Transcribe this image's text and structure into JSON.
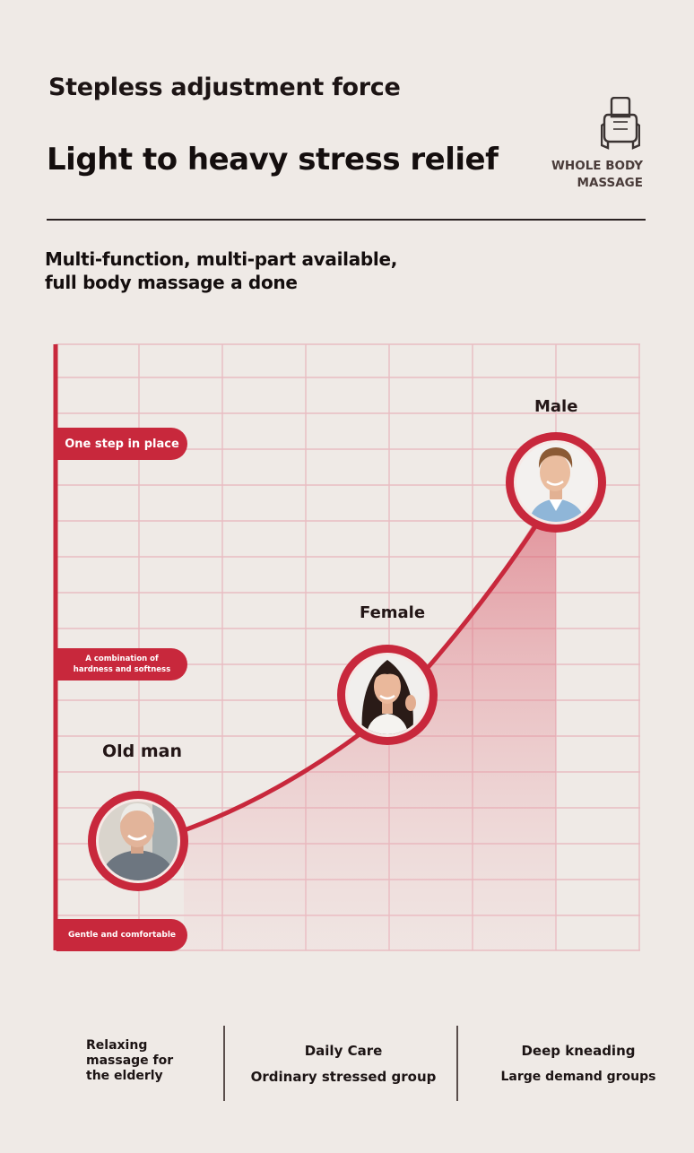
{
  "header": {
    "line1": "Stepless adjustment force",
    "line2": "Light to heavy stress relief"
  },
  "badge": {
    "icon": "massage-chair-icon",
    "line1": "WHOLE BODY",
    "line2": "MASSAGE"
  },
  "subtitle": {
    "line1": "Multi-function, multi-part available,",
    "line2": "full body massage a done"
  },
  "chart": {
    "levels": {
      "top": "One step in place",
      "middle_line1": "A combination of",
      "middle_line2": "hardness and softness",
      "bottom": "Gentle and comfortable"
    },
    "points": [
      {
        "label": "Old man",
        "photo": "elderly-man-avatar"
      },
      {
        "label": "Female",
        "photo": "woman-avatar"
      },
      {
        "label": "Male",
        "photo": "man-avatar"
      }
    ],
    "accent_color": "#c8283c",
    "grid_color": "#e7b6bc"
  },
  "footer": {
    "col1": {
      "line1": "Relaxing",
      "line2": "massage for",
      "line3": "the elderly"
    },
    "col2": {
      "line1": "Daily Care",
      "line2": "Ordinary stressed group"
    },
    "col3": {
      "line1": "Deep kneading",
      "line2": "Large demand groups"
    }
  }
}
